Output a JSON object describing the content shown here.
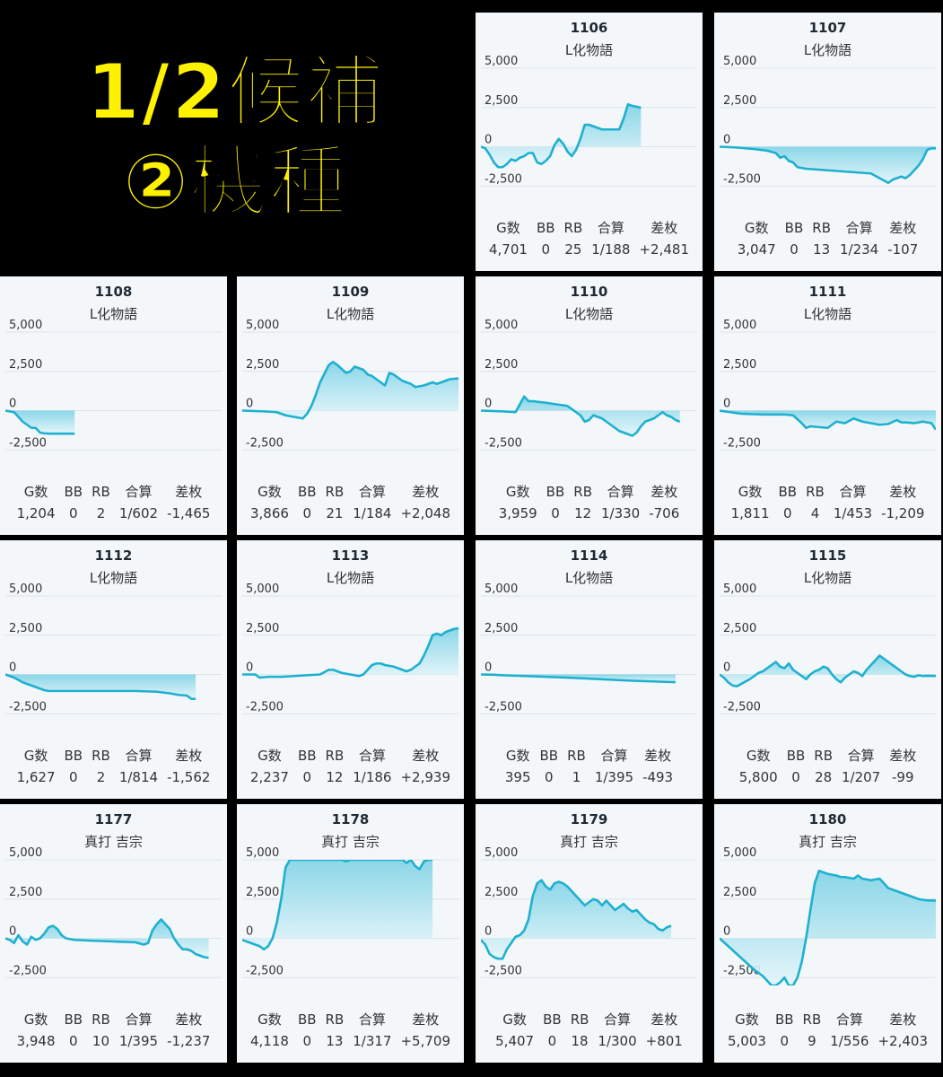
{
  "headline": {
    "line1": "1/2候補",
    "line2": "②機種"
  },
  "colors": {
    "line": "#1eb0cf",
    "fill_top": "#7fd3e6",
    "fill_bottom": "#e4f5fa",
    "card_bg": "#f3f7fa",
    "headline": "#fff200"
  },
  "stat_labels": [
    "G数",
    "BB",
    "RB",
    "合算",
    "差枚"
  ],
  "chart_data": [
    {
      "type": "area",
      "title": "1106",
      "subtitle": "L化物語",
      "yticks": [
        "5,000",
        "2,500",
        "0",
        "-2,500"
      ],
      "ylim": [
        -3000,
        5000
      ],
      "stats": [
        "4,701",
        "0",
        "25",
        "1/188",
        "+2,481"
      ],
      "x": [
        0,
        2,
        4,
        6,
        8,
        10,
        12,
        14,
        16,
        18,
        20,
        22,
        24,
        26,
        28,
        30,
        32,
        34,
        36,
        38,
        40,
        42,
        44,
        46,
        48,
        50,
        52,
        54,
        56,
        58,
        60,
        62,
        64,
        66,
        68,
        70,
        72,
        74,
        76,
        78,
        80,
        82,
        84,
        86,
        88,
        90,
        92,
        94,
        96,
        98,
        100
      ],
      "values": [
        0,
        -100,
        -500,
        -1000,
        -1300,
        -1300,
        -1100,
        -800,
        -900,
        -700,
        -600,
        -400,
        -400,
        -1000,
        -1100,
        -900,
        -600,
        100,
        500,
        200,
        -300,
        -600,
        -200,
        500,
        1400,
        1400,
        1300,
        1200,
        1100,
        1100,
        1100,
        1100,
        1100,
        1800,
        2700,
        2600,
        2550,
        2481,
        null,
        null,
        null,
        null,
        null,
        null,
        null,
        null,
        null,
        null,
        null,
        null,
        null
      ]
    },
    {
      "type": "area",
      "title": "1107",
      "subtitle": "L化物語",
      "yticks": [
        "5,000",
        "2,500",
        "0",
        "-2,500"
      ],
      "ylim": [
        -3000,
        5000
      ],
      "stats": [
        "3,047",
        "0",
        "13",
        "1/234",
        "-107"
      ],
      "x": [
        0,
        8,
        16,
        22,
        26,
        28,
        30,
        32,
        34,
        36,
        40,
        50,
        60,
        70,
        74,
        78,
        80,
        84,
        86,
        88,
        90,
        92,
        94,
        96,
        98,
        100
      ],
      "values": [
        0,
        -50,
        -150,
        -250,
        -400,
        -700,
        -600,
        -900,
        -1000,
        -1300,
        -1400,
        -1500,
        -1600,
        -1700,
        -2000,
        -2300,
        -2100,
        -1900,
        -2000,
        -1800,
        -1500,
        -1200,
        -800,
        -200,
        -100,
        -107
      ]
    },
    {
      "type": "area",
      "title": "1108",
      "subtitle": "L化物語",
      "yticks": [
        "5,000",
        "2,500",
        "0",
        "-2,500"
      ],
      "ylim": [
        -3000,
        5000
      ],
      "stats": [
        "1,204",
        "0",
        "2",
        "1/602",
        "-1,465"
      ],
      "x": [
        0,
        4,
        8,
        12,
        14,
        16,
        18,
        20,
        24,
        28,
        32
      ],
      "values": [
        0,
        -100,
        -700,
        -1100,
        -1100,
        -1400,
        -1450,
        -1465,
        -1465,
        -1465,
        -1465
      ]
    },
    {
      "type": "area",
      "title": "1109",
      "subtitle": "L化物語",
      "yticks": [
        "5,000",
        "2,500",
        "0",
        "-2,500"
      ],
      "ylim": [
        -3000,
        5000
      ],
      "stats": [
        "3,866",
        "0",
        "21",
        "1/184",
        "+2,048"
      ],
      "x": [
        0,
        10,
        16,
        20,
        24,
        28,
        30,
        32,
        34,
        36,
        40,
        42,
        44,
        48,
        50,
        52,
        56,
        58,
        60,
        62,
        64,
        66,
        68,
        70,
        74,
        76,
        78,
        80,
        84,
        86,
        88,
        90,
        92,
        94,
        96,
        100
      ],
      "values": [
        0,
        -50,
        -100,
        -300,
        -400,
        -500,
        -200,
        300,
        1000,
        1800,
        2900,
        3100,
        2900,
        2400,
        2500,
        2800,
        2600,
        2300,
        2200,
        2000,
        1800,
        1600,
        2400,
        2300,
        1900,
        1800,
        1700,
        1500,
        1600,
        1700,
        1800,
        1700,
        1800,
        1900,
        2000,
        2048
      ]
    },
    {
      "type": "area",
      "title": "1110",
      "subtitle": "L化物語",
      "yticks": [
        "5,000",
        "2,500",
        "0",
        "-2,500"
      ],
      "ylim": [
        -3000,
        5000
      ],
      "stats": [
        "3,959",
        "0",
        "12",
        "1/330",
        "-706"
      ],
      "x": [
        0,
        10,
        16,
        18,
        20,
        22,
        24,
        30,
        40,
        46,
        48,
        50,
        52,
        54,
        56,
        58,
        60,
        64,
        66,
        68,
        70,
        72,
        74,
        76,
        78,
        80,
        82,
        84,
        86,
        88,
        90,
        92
      ],
      "values": [
        0,
        -50,
        -100,
        400,
        900,
        600,
        600,
        500,
        300,
        -300,
        -700,
        -600,
        -300,
        -400,
        -500,
        -700,
        -900,
        -1300,
        -1400,
        -1500,
        -1600,
        -1400,
        -1000,
        -700,
        -600,
        -500,
        -300,
        -100,
        -300,
        -400,
        -600,
        -706
      ]
    },
    {
      "type": "area",
      "title": "1111",
      "subtitle": "L化物語",
      "yticks": [
        "5,000",
        "2,500",
        "0",
        "-2,500"
      ],
      "ylim": [
        -3000,
        5000
      ],
      "stats": [
        "1,811",
        "0",
        "4",
        "1/453",
        "-1,209"
      ],
      "x": [
        0,
        10,
        20,
        30,
        34,
        38,
        40,
        42,
        46,
        50,
        52,
        54,
        58,
        62,
        66,
        70,
        74,
        78,
        82,
        84,
        86,
        90,
        94,
        98,
        100
      ],
      "values": [
        0,
        -200,
        -250,
        -250,
        -300,
        -800,
        -1100,
        -1000,
        -1050,
        -1100,
        -900,
        -700,
        -800,
        -500,
        -700,
        -800,
        -900,
        -850,
        -600,
        -750,
        -750,
        -800,
        -700,
        -800,
        -1209
      ]
    },
    {
      "type": "area",
      "title": "1112",
      "subtitle": "L化物語",
      "yticks": [
        "5,000",
        "2,500",
        "0",
        "-2,500"
      ],
      "ylim": [
        -3000,
        5000
      ],
      "stats": [
        "1,627",
        "0",
        "2",
        "1/814",
        "-1,562"
      ],
      "x": [
        0,
        4,
        8,
        10,
        14,
        16,
        18,
        20,
        40,
        60,
        70,
        76,
        80,
        84,
        86,
        88
      ],
      "values": [
        0,
        -200,
        -500,
        -600,
        -800,
        -900,
        -1000,
        -1050,
        -1050,
        -1050,
        -1100,
        -1200,
        -1300,
        -1350,
        -1550,
        -1562
      ]
    },
    {
      "type": "area",
      "title": "1113",
      "subtitle": "L化物語",
      "yticks": [
        "5,000",
        "2,500",
        "0",
        "-2,500"
      ],
      "ylim": [
        -3000,
        5000
      ],
      "stats": [
        "2,237",
        "0",
        "12",
        "1/186",
        "+2,939"
      ],
      "x": [
        0,
        6,
        8,
        12,
        18,
        24,
        30,
        36,
        40,
        42,
        44,
        46,
        50,
        52,
        54,
        56,
        60,
        62,
        64,
        66,
        70,
        72,
        74,
        76,
        78,
        80,
        82,
        84,
        86,
        88,
        90,
        92,
        94,
        96,
        98,
        100
      ],
      "values": [
        0,
        0,
        -200,
        -150,
        -150,
        -100,
        -50,
        0,
        300,
        300,
        200,
        100,
        0,
        -50,
        -100,
        0,
        600,
        700,
        700,
        600,
        500,
        400,
        300,
        200,
        300,
        500,
        700,
        1200,
        1800,
        2500,
        2600,
        2500,
        2700,
        2800,
        2900,
        2939
      ]
    },
    {
      "type": "area",
      "title": "1114",
      "subtitle": "L化物語",
      "yticks": [
        "5,000",
        "2,500",
        "0",
        "-2,500"
      ],
      "ylim": [
        -3000,
        5000
      ],
      "stats": [
        "395",
        "0",
        "1",
        "1/395",
        "-493"
      ],
      "x": [
        0,
        6,
        10,
        40,
        70,
        90
      ],
      "values": [
        0,
        -20,
        -50,
        -200,
        -400,
        -493
      ]
    },
    {
      "type": "area",
      "title": "1115",
      "subtitle": "L化物語",
      "yticks": [
        "5,000",
        "2,500",
        "0",
        "-2,500"
      ],
      "ylim": [
        -3000,
        5000
      ],
      "stats": [
        "5,800",
        "0",
        "28",
        "1/207",
        "-99"
      ],
      "x": [
        0,
        2,
        4,
        6,
        8,
        10,
        14,
        16,
        18,
        20,
        22,
        24,
        26,
        28,
        30,
        32,
        34,
        36,
        38,
        40,
        42,
        44,
        46,
        48,
        50,
        52,
        54,
        56,
        58,
        60,
        62,
        64,
        66,
        68,
        70,
        72,
        74,
        76,
        78,
        80,
        82,
        84,
        86,
        88,
        90,
        92,
        94,
        96,
        98,
        100
      ],
      "values": [
        0,
        -200,
        -500,
        -700,
        -750,
        -600,
        -300,
        -100,
        100,
        200,
        400,
        600,
        800,
        500,
        400,
        700,
        300,
        100,
        -100,
        -300,
        0,
        200,
        300,
        500,
        400,
        0,
        -300,
        -500,
        -200,
        0,
        200,
        100,
        -100,
        300,
        600,
        900,
        1200,
        1000,
        800,
        600,
        400,
        200,
        0,
        -100,
        -150,
        -50,
        -100,
        -80,
        -90,
        -99
      ]
    },
    {
      "type": "area",
      "title": "1177",
      "subtitle": "真打 吉宗",
      "yticks": [
        "5,000",
        "2,500",
        "0",
        "-2,500"
      ],
      "ylim": [
        -3000,
        5000
      ],
      "stats": [
        "3,948",
        "0",
        "10",
        "1/395",
        "-1,237"
      ],
      "x": [
        0,
        2,
        4,
        6,
        8,
        10,
        12,
        14,
        16,
        18,
        20,
        22,
        24,
        26,
        28,
        30,
        32,
        40,
        50,
        60,
        64,
        66,
        68,
        70,
        72,
        74,
        76,
        78,
        80,
        82,
        84,
        86,
        88,
        90,
        92,
        94
      ],
      "values": [
        0,
        -100,
        -300,
        200,
        -200,
        -400,
        100,
        -100,
        0,
        300,
        700,
        800,
        600,
        200,
        0,
        -50,
        -100,
        -150,
        -200,
        -250,
        -400,
        -300,
        500,
        900,
        1200,
        900,
        600,
        0,
        -400,
        -700,
        -700,
        -800,
        -1000,
        -1100,
        -1200,
        -1237
      ]
    },
    {
      "type": "area",
      "title": "1178",
      "subtitle": "真打 吉宗",
      "yticks": [
        "5,000",
        "2,500",
        "0",
        "-2,500"
      ],
      "ylim": [
        -3000,
        5000
      ],
      "stats": [
        "4,118",
        "0",
        "13",
        "1/317",
        "+5,709"
      ],
      "x": [
        0,
        4,
        8,
        10,
        12,
        14,
        16,
        18,
        20,
        22,
        24,
        26,
        28,
        30,
        32,
        34,
        36,
        38,
        40,
        42,
        44,
        46,
        48,
        50,
        52,
        54,
        56,
        58,
        60,
        62,
        64,
        66,
        68,
        70,
        72,
        74,
        76,
        78,
        80,
        82,
        84,
        86,
        88
      ],
      "values": [
        -100,
        -300,
        -500,
        -700,
        -500,
        0,
        1000,
        2500,
        4500,
        5000,
        5000,
        5000,
        5000,
        5000,
        5000,
        5000,
        5000,
        5000,
        5000,
        5000,
        5000,
        5000,
        4900,
        5000,
        5000,
        5000,
        5000,
        5000,
        5000,
        5000,
        5000,
        5000,
        5000,
        5000,
        5000,
        5000,
        4800,
        5000,
        4600,
        4400,
        4900,
        5000,
        5000
      ]
    },
    {
      "type": "area",
      "title": "1179",
      "subtitle": "真打 吉宗",
      "yticks": [
        "5,000",
        "2,500",
        "0",
        "-2,500"
      ],
      "ylim": [
        -3000,
        5000
      ],
      "stats": [
        "5,407",
        "0",
        "18",
        "1/300",
        "+801"
      ],
      "x": [
        0,
        2,
        4,
        6,
        8,
        10,
        12,
        14,
        16,
        18,
        20,
        22,
        24,
        26,
        28,
        30,
        32,
        34,
        36,
        38,
        40,
        42,
        44,
        46,
        48,
        50,
        52,
        54,
        56,
        58,
        60,
        62,
        64,
        66,
        68,
        70,
        72,
        74,
        76,
        78,
        80,
        82,
        84,
        86,
        88
      ],
      "values": [
        -100,
        -400,
        -1000,
        -1200,
        -1300,
        -1300,
        -700,
        -300,
        100,
        200,
        500,
        1200,
        2700,
        3500,
        3700,
        3300,
        3100,
        3500,
        3600,
        3500,
        3300,
        3000,
        2700,
        2400,
        2100,
        2300,
        2500,
        2400,
        2100,
        2400,
        2100,
        1800,
        2000,
        2200,
        1900,
        1700,
        1800,
        1500,
        1200,
        1000,
        900,
        600,
        500,
        700,
        801
      ]
    },
    {
      "type": "area",
      "title": "1180",
      "subtitle": "真打 吉宗",
      "yticks": [
        "5,000",
        "2,500",
        "0",
        "-2,500"
      ],
      "ylim": [
        -3000,
        5000
      ],
      "stats": [
        "5,003",
        "0",
        "9",
        "1/556",
        "+2,403"
      ],
      "x": [
        0,
        4,
        8,
        12,
        16,
        20,
        22,
        24,
        26,
        28,
        30,
        32,
        34,
        36,
        38,
        40,
        42,
        44,
        46,
        48,
        50,
        52,
        54,
        56,
        58,
        60,
        62,
        64,
        66,
        70,
        74,
        78,
        82,
        86,
        88,
        90,
        92,
        94,
        96,
        98,
        100
      ],
      "values": [
        0,
        -500,
        -1000,
        -1500,
        -2000,
        -2400,
        -2700,
        -3000,
        -3000,
        -2800,
        -2500,
        -3000,
        -3000,
        -2500,
        -1500,
        0,
        1800,
        3500,
        4300,
        4200,
        4100,
        4050,
        4000,
        3900,
        3900,
        3850,
        3800,
        4000,
        3800,
        3700,
        3800,
        3200,
        3000,
        2800,
        2700,
        2600,
        2500,
        2450,
        2420,
        2410,
        2403
      ]
    }
  ]
}
